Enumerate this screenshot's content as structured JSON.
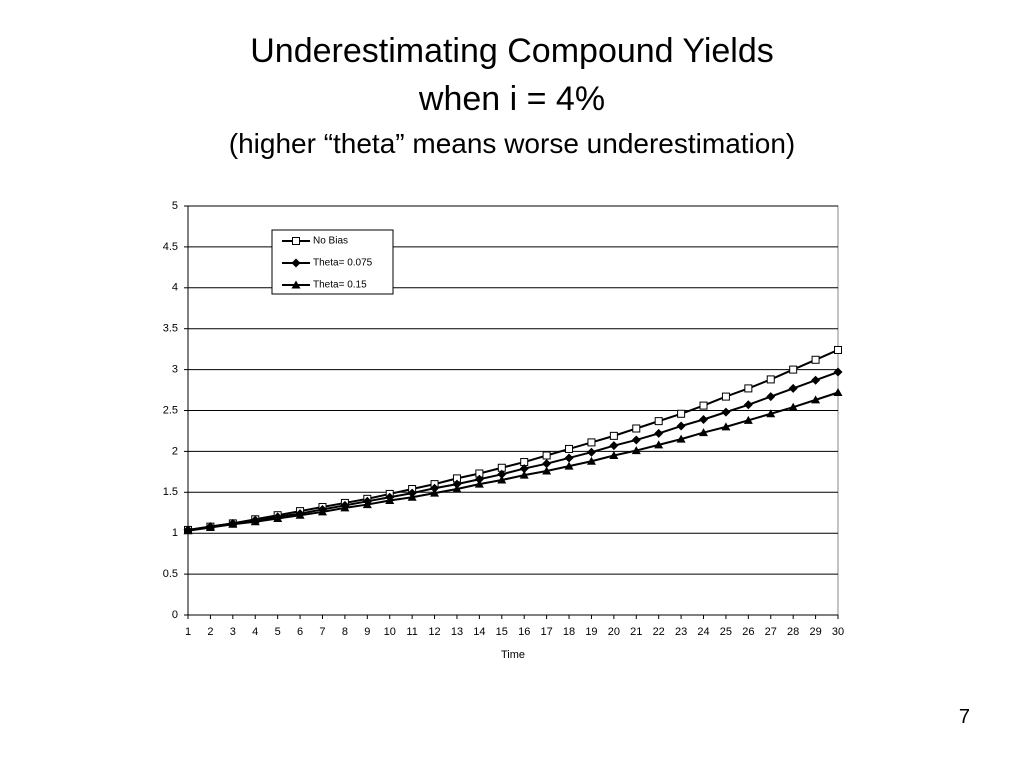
{
  "slide_number": "7",
  "chart_data": {
    "type": "line",
    "title": "Underestimating Compound Yields",
    "subtitle": "when i = 4%",
    "annotation": "(higher “theta” means worse underestimation)",
    "xlabel": "Time",
    "categories": [
      1,
      2,
      3,
      4,
      5,
      6,
      7,
      8,
      9,
      10,
      11,
      12,
      13,
      14,
      15,
      16,
      17,
      18,
      19,
      20,
      21,
      22,
      23,
      24,
      25,
      26,
      27,
      28,
      29,
      30
    ],
    "series": [
      {
        "name": "No Bias",
        "color": "#000000",
        "marker": "square",
        "values": [
          1.04,
          1.08,
          1.12,
          1.17,
          1.22,
          1.27,
          1.32,
          1.37,
          1.42,
          1.48,
          1.54,
          1.6,
          1.67,
          1.73,
          1.8,
          1.87,
          1.95,
          2.03,
          2.11,
          2.19,
          2.28,
          2.37,
          2.46,
          2.56,
          2.67,
          2.77,
          2.88,
          3.0,
          3.12,
          3.24
        ]
      },
      {
        "name": "Theta= 0.075",
        "color": "#000000",
        "marker": "diamond",
        "values": [
          1.04,
          1.08,
          1.12,
          1.16,
          1.2,
          1.24,
          1.29,
          1.34,
          1.39,
          1.44,
          1.49,
          1.55,
          1.6,
          1.66,
          1.72,
          1.79,
          1.85,
          1.92,
          1.99,
          2.07,
          2.14,
          2.22,
          2.31,
          2.39,
          2.48,
          2.57,
          2.67,
          2.77,
          2.87,
          2.97
        ]
      },
      {
        "name": "Theta= 0.15",
        "color": "#000000",
        "marker": "triangle",
        "values": [
          1.03,
          1.07,
          1.11,
          1.14,
          1.18,
          1.22,
          1.26,
          1.31,
          1.35,
          1.4,
          1.44,
          1.49,
          1.54,
          1.6,
          1.65,
          1.71,
          1.76,
          1.82,
          1.88,
          1.95,
          2.01,
          2.08,
          2.15,
          2.23,
          2.3,
          2.38,
          2.46,
          2.54,
          2.63,
          2.72
        ]
      }
    ],
    "ylim": [
      0,
      5
    ],
    "yticks": [
      0,
      0.5,
      1,
      1.5,
      2,
      2.5,
      3,
      3.5,
      4,
      4.5,
      5
    ],
    "grid": true,
    "legend": "top-left"
  }
}
